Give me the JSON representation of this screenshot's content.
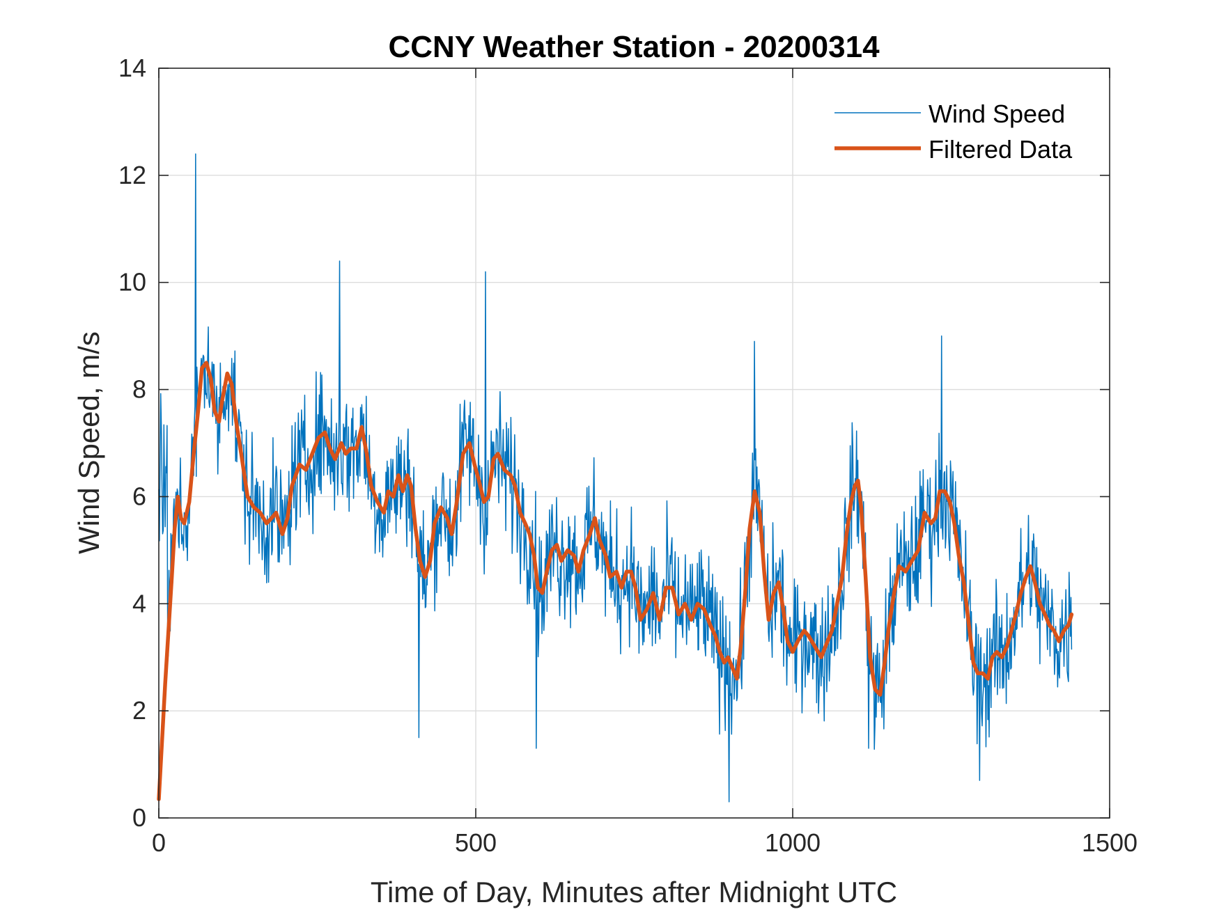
{
  "chart_data": {
    "type": "line",
    "title": "CCNY Weather Station - 20200314",
    "xlabel": "Time of Day, Minutes after Midnight UTC",
    "ylabel": "Wind Speed, m/s",
    "xlim": [
      0,
      1500
    ],
    "ylim": [
      0,
      14
    ],
    "xticks": [
      0,
      500,
      1000,
      1500
    ],
    "yticks": [
      0,
      2,
      4,
      6,
      8,
      10,
      12,
      14
    ],
    "xtick_labels": [
      "0",
      "500",
      "1000",
      "1500"
    ],
    "ytick_labels": [
      "0",
      "2",
      "4",
      "6",
      "8",
      "10",
      "12",
      "14"
    ],
    "grid": true,
    "legend_position": "top-right",
    "series": [
      {
        "name": "Wind Speed",
        "color": "#0072BD",
        "style": "thin-noisy",
        "x_range": [
          0,
          1440
        ],
        "n_points": 1440,
        "noise_amplitude": 1.1,
        "noted_peaks": [
          {
            "x": 58,
            "y": 12.4
          },
          {
            "x": 285,
            "y": 10.4
          },
          {
            "x": 515,
            "y": 10.2
          },
          {
            "x": 940,
            "y": 8.9
          },
          {
            "x": 1235,
            "y": 9.0
          }
        ],
        "noted_troughs": [
          {
            "x": 410,
            "y": 1.5
          },
          {
            "x": 595,
            "y": 1.3
          },
          {
            "x": 900,
            "y": 0.3
          },
          {
            "x": 1120,
            "y": 1.3
          },
          {
            "x": 1295,
            "y": 0.7
          }
        ]
      },
      {
        "name": "Filtered Data",
        "color": "#D95319",
        "style": "thick",
        "x": [
          0,
          10,
          20,
          25,
          30,
          35,
          40,
          48,
          55,
          62,
          68,
          75,
          82,
          88,
          95,
          100,
          108,
          115,
          122,
          130,
          140,
          150,
          160,
          170,
          178,
          185,
          195,
          203,
          210,
          222,
          232,
          242,
          252,
          262,
          270,
          278,
          288,
          295,
          303,
          312,
          320,
          328,
          335,
          345,
          355,
          362,
          370,
          378,
          385,
          392,
          398,
          405,
          412,
          420,
          428,
          435,
          445,
          455,
          462,
          470,
          480,
          490,
          498,
          505,
          513,
          520,
          528,
          535,
          545,
          555,
          562,
          570,
          578,
          585,
          592,
          598,
          605,
          612,
          620,
          628,
          635,
          645,
          655,
          662,
          670,
          680,
          688,
          695,
          705,
          712,
          722,
          730,
          738,
          745,
          752,
          760,
          770,
          780,
          790,
          800,
          810,
          820,
          830,
          840,
          850,
          860,
          870,
          878,
          885,
          892,
          898,
          905,
          912,
          918,
          925,
          932,
          940,
          948,
          955,
          962,
          970,
          978,
          985,
          992,
          1000,
          1008,
          1018,
          1025,
          1035,
          1045,
          1055,
          1062,
          1070,
          1078,
          1085,
          1092,
          1098,
          1103,
          1108,
          1115,
          1122,
          1130,
          1138,
          1145,
          1152,
          1160,
          1168,
          1178,
          1188,
          1198,
          1208,
          1218,
          1225,
          1232,
          1240,
          1248,
          1255,
          1262,
          1270,
          1278,
          1285,
          1292,
          1300,
          1308,
          1315,
          1322,
          1330,
          1338,
          1345,
          1352,
          1360,
          1368,
          1375,
          1382,
          1390,
          1398,
          1405,
          1412,
          1420,
          1428,
          1435,
          1440
        ],
        "y": [
          0.35,
          2.5,
          4.4,
          5.4,
          6.0,
          5.6,
          5.5,
          5.9,
          6.8,
          7.6,
          8.4,
          8.5,
          8.2,
          7.6,
          7.4,
          7.8,
          8.3,
          8.1,
          7.4,
          6.8,
          6.0,
          5.8,
          5.7,
          5.5,
          5.6,
          5.7,
          5.3,
          5.6,
          6.2,
          6.6,
          6.5,
          6.8,
          7.1,
          7.2,
          6.9,
          6.7,
          7.0,
          6.8,
          6.9,
          6.9,
          7.3,
          6.8,
          6.2,
          5.9,
          5.7,
          6.1,
          6.0,
          6.4,
          6.1,
          6.4,
          6.2,
          5.4,
          4.8,
          4.5,
          4.8,
          5.5,
          5.8,
          5.6,
          5.3,
          5.9,
          6.8,
          7.0,
          6.6,
          6.3,
          5.9,
          6.0,
          6.7,
          6.8,
          6.5,
          6.4,
          6.2,
          5.7,
          5.5,
          5.3,
          4.9,
          4.3,
          4.2,
          4.6,
          5.0,
          5.1,
          4.8,
          5.0,
          4.9,
          4.6,
          5.0,
          5.3,
          5.6,
          5.2,
          4.9,
          4.5,
          4.6,
          4.3,
          4.6,
          4.6,
          4.3,
          3.7,
          3.9,
          4.2,
          3.7,
          4.3,
          4.3,
          3.8,
          4.0,
          3.7,
          4.0,
          3.9,
          3.6,
          3.4,
          3.1,
          2.9,
          3.0,
          2.8,
          2.6,
          3.2,
          4.2,
          5.4,
          6.1,
          5.7,
          4.6,
          3.7,
          4.2,
          4.4,
          3.9,
          3.3,
          3.1,
          3.3,
          3.5,
          3.4,
          3.2,
          3.0,
          3.3,
          3.5,
          4.0,
          4.5,
          5.3,
          5.9,
          6.2,
          6.3,
          5.8,
          4.5,
          3.0,
          2.4,
          2.3,
          2.9,
          3.6,
          4.2,
          4.7,
          4.6,
          4.8,
          5.0,
          5.7,
          5.5,
          5.6,
          6.1,
          6.1,
          5.9,
          5.5,
          4.9,
          4.4,
          3.6,
          2.9,
          2.7,
          2.7,
          2.6,
          3.0,
          3.1,
          3.0,
          3.2,
          3.5,
          3.8,
          4.2,
          4.5,
          4.7,
          4.4,
          4.0,
          3.8,
          3.6,
          3.5,
          3.3,
          3.5,
          3.6,
          3.8
        ]
      }
    ]
  }
}
